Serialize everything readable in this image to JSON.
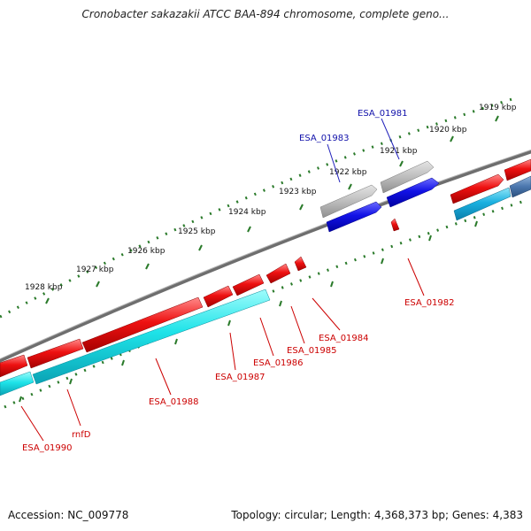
{
  "title": "Cronobacter sakazakii ATCC BAA-894 chromosome, complete geno...",
  "footer": {
    "accession": "Accession: NC_009778",
    "summary": "Topology: circular; Length: 4,368,373 bp; Genes: 4,383"
  },
  "colors": {
    "backbone": "#777777",
    "tick": "#2a7a2a",
    "cds_forward": "#ee1111",
    "cds_reverse": "#22dddd",
    "gene_gray": "#bbbbbb",
    "gene_blue": "#1111dd",
    "label_red": "#cc0000",
    "label_blue": "#1111aa"
  },
  "scale_labels": [
    "1919 kbp",
    "1920 kbp",
    "1921 kbp",
    "1922 kbp",
    "1923 kbp",
    "1924 kbp",
    "1925 kbp",
    "1926 kbp",
    "1927 kbp",
    "1928 kbp"
  ],
  "gene_labels_top": [
    "ESA_01981",
    "ESA_01983"
  ],
  "gene_labels_bottom": [
    "ESA_01982",
    "ESA_01984",
    "ESA_01985",
    "ESA_01986",
    "ESA_01987",
    "ESA_01988",
    "rnfD",
    "ESA_01990"
  ]
}
